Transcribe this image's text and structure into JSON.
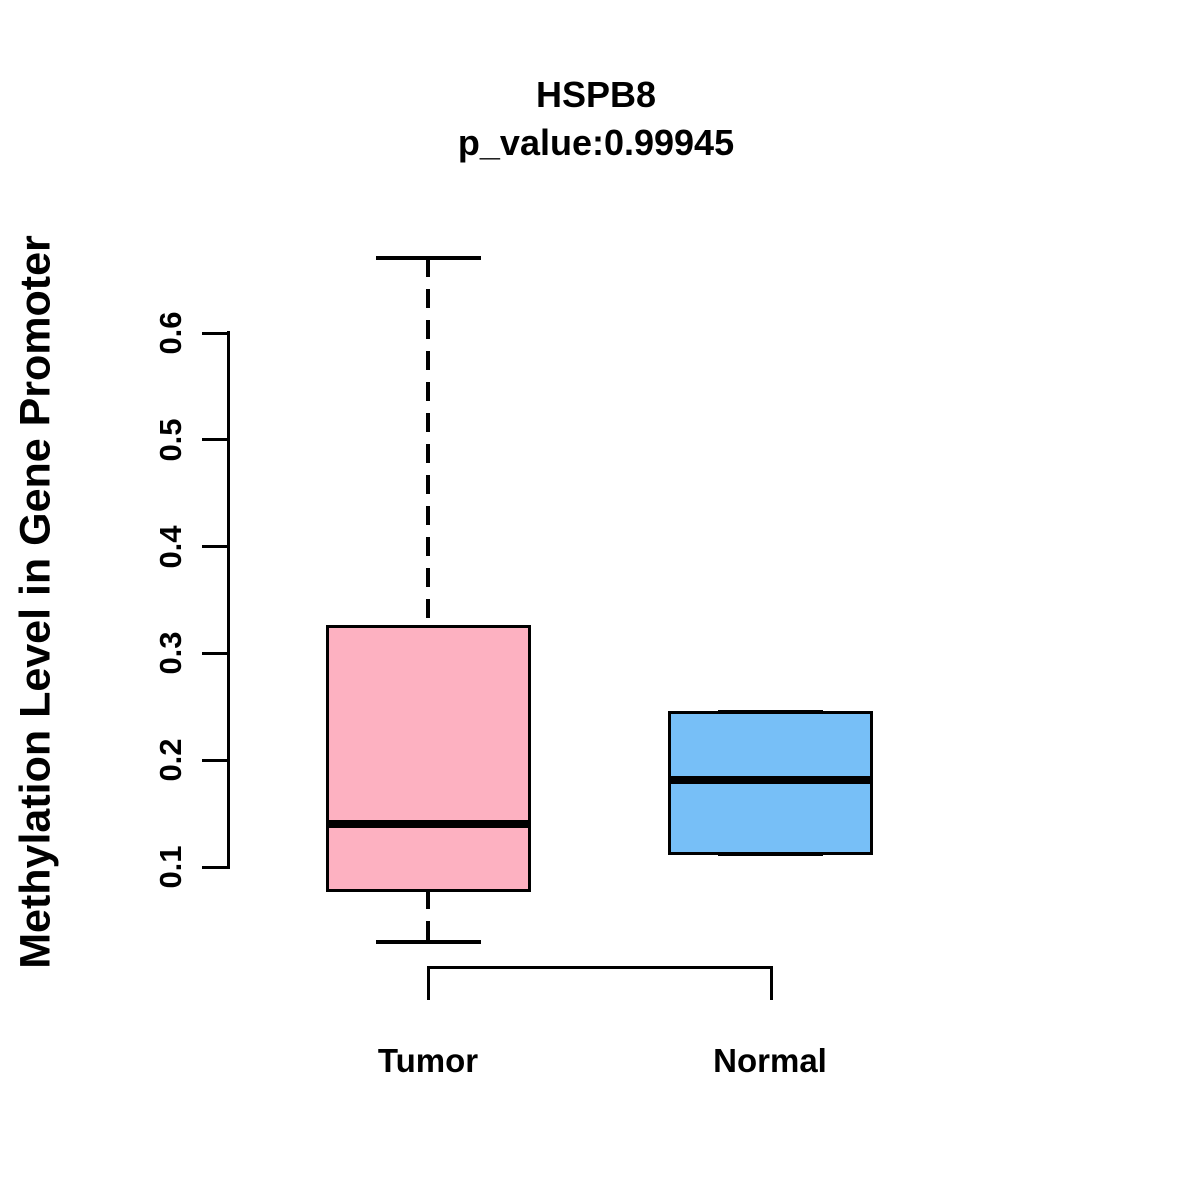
{
  "chart_data": {
    "type": "boxplot",
    "title": "HSPB8",
    "subtitle": "p_value:0.99945",
    "ylabel": "Methylation Level in Gene Promoter",
    "xlabel": "",
    "categories": [
      "Tumor",
      "Normal"
    ],
    "y_ticks": [
      0.1,
      0.2,
      0.3,
      0.4,
      0.5,
      0.6
    ],
    "y_tick_labels": [
      "0.1",
      "0.2",
      "0.3",
      "0.4",
      "0.5",
      "0.6"
    ],
    "axis_tick_range": [
      0.1,
      0.6
    ],
    "data_range": [
      0.03,
      0.67
    ],
    "grid": "off",
    "legend": "none",
    "series": [
      {
        "name": "Tumor",
        "box_color": "#FDB1C1",
        "border_color": "#000000",
        "whisker_low": 0.03,
        "q1": 0.078,
        "median": 0.14,
        "q3": 0.325,
        "whisker_high": 0.67,
        "whisker_style": "dashed"
      },
      {
        "name": "Normal",
        "box_color": "#77BFF7",
        "border_color": "#000000",
        "whisker_low": 0.113,
        "q1": 0.113,
        "median": 0.181,
        "q3": 0.245,
        "whisker_high": 0.245,
        "whisker_style": "dashed"
      }
    ],
    "comparison_bracket": {
      "between": [
        "Tumor",
        "Normal"
      ],
      "position": "below-plot"
    }
  },
  "colors": {
    "background": "#FFFFFF",
    "foreground": "#000000",
    "tumor_fill": "#FDB1C1",
    "normal_fill": "#77BFF7"
  }
}
